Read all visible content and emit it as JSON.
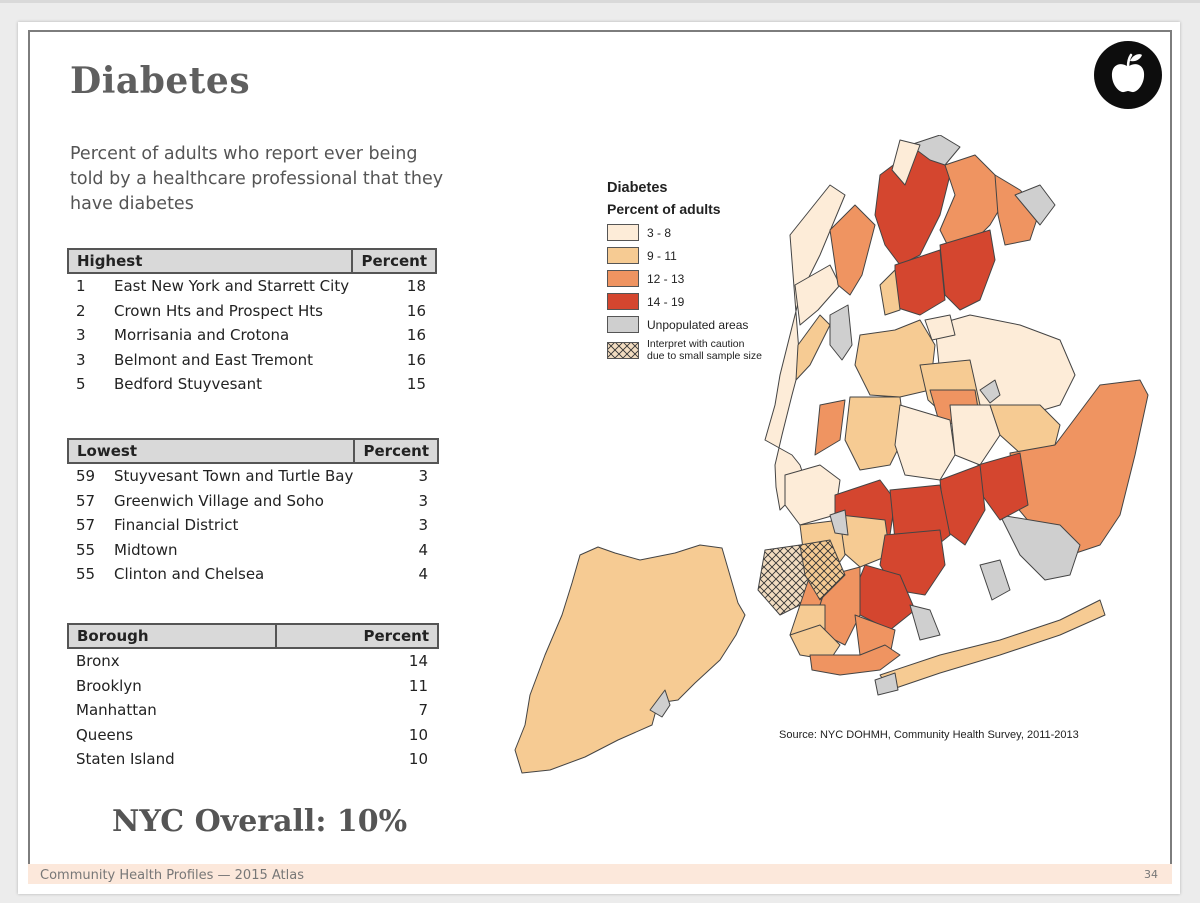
{
  "title": "Diabetes",
  "subtitle": "Percent of adults who report ever being told by a healthcare professional that they have diabetes",
  "highest": {
    "header_label": "Highest",
    "header_percent": "Percent",
    "rows": [
      {
        "rank": "1",
        "name": "East New York and Starrett City",
        "percent": "18"
      },
      {
        "rank": "2",
        "name": "Crown Hts and Prospect Hts",
        "percent": "16"
      },
      {
        "rank": "3",
        "name": "Morrisania and Crotona",
        "percent": "16"
      },
      {
        "rank": "3",
        "name": "Belmont and East Tremont",
        "percent": "16"
      },
      {
        "rank": "5",
        "name": "Bedford Stuyvesant",
        "percent": "15"
      }
    ]
  },
  "lowest": {
    "header_label": "Lowest",
    "header_percent": "Percent",
    "rows": [
      {
        "rank": "59",
        "name": "Stuyvesant Town and Turtle Bay",
        "percent": "3"
      },
      {
        "rank": "57",
        "name": "Greenwich Village and Soho",
        "percent": "3"
      },
      {
        "rank": "57",
        "name": "Financial District",
        "percent": "3"
      },
      {
        "rank": "55",
        "name": "Midtown",
        "percent": "4"
      },
      {
        "rank": "55",
        "name": "Clinton and Chelsea",
        "percent": "4"
      }
    ]
  },
  "borough": {
    "header_label": "Borough",
    "header_percent": "Percent",
    "rows": [
      {
        "name": "Bronx",
        "percent": "14"
      },
      {
        "name": "Brooklyn",
        "percent": "11"
      },
      {
        "name": "Manhattan",
        "percent": "7"
      },
      {
        "name": "Queens",
        "percent": "10"
      },
      {
        "name": "Staten Island",
        "percent": "10"
      }
    ]
  },
  "overall": "NYC Overall: 10%",
  "legend": {
    "title": "Diabetes",
    "subtitle": "Percent of adults",
    "items": [
      {
        "label": "3 - 8",
        "color": "#fdecd8"
      },
      {
        "label": "9 - 11",
        "color": "#f6cb93"
      },
      {
        "label": "12 - 13",
        "color": "#ef9461"
      },
      {
        "label": "14 - 19",
        "color": "#d4462f"
      },
      {
        "label": "Unpopulated areas",
        "color": "#cfcfcf"
      }
    ],
    "caution_line1": "Interpret with caution",
    "caution_line2": "due to small sample size"
  },
  "source": "Source: NYC DOHMH, Community Health Survey, 2011-2013",
  "footer": {
    "left": "Community Health Profiles — 2015 Atlas",
    "page": "34"
  },
  "icon": "apple-icon"
}
